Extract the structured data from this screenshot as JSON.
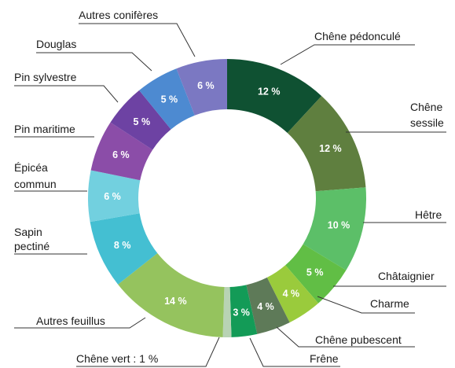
{
  "chart_data": {
    "type": "pie",
    "donut": true,
    "title": "",
    "slices": [
      {
        "label": "Chêne pédonculé",
        "value": 12,
        "value_label": "12 %",
        "color": "#0f5132"
      },
      {
        "label": "Chêne sessile",
        "value": 12,
        "value_label": "12 %",
        "color": "#5f7f3f"
      },
      {
        "label": "Hêtre",
        "value": 10,
        "value_label": "10 %",
        "color": "#5cbf68"
      },
      {
        "label": "Châtaignier",
        "value": 5,
        "value_label": "5 %",
        "color": "#61be45"
      },
      {
        "label": "Charme",
        "value": 4,
        "value_label": "4 %",
        "color": "#9acb3c"
      },
      {
        "label": "Chêne pubescent",
        "value": 4,
        "value_label": "4 %",
        "color": "#5e7a58"
      },
      {
        "label": "Frêne",
        "value": 3,
        "value_label": "3 %",
        "color": "#139b57"
      },
      {
        "label": "Chêne vert : 1 %",
        "value": 1,
        "value_label": "",
        "color": "#b8d3b4"
      },
      {
        "label": "Autres feuillus",
        "value": 14,
        "value_label": "14 %",
        "color": "#95c35e"
      },
      {
        "label": "Sapin pectiné",
        "value": 8,
        "value_label": "8 %",
        "color": "#44bfd2"
      },
      {
        "label": "Épicéa commun",
        "value": 6,
        "value_label": "6 %",
        "color": "#72d0df"
      },
      {
        "label": "Pin maritime",
        "value": 6,
        "value_label": "6 %",
        "color": "#8b4da8"
      },
      {
        "label": "Pin sylvestre",
        "value": 5,
        "value_label": "5 %",
        "color": "#6d42a3"
      },
      {
        "label": "Douglas",
        "value": 5,
        "value_label": "5 %",
        "color": "#4d8ad1"
      },
      {
        "label": "Autres conifères",
        "value": 6,
        "value_label": "6 %",
        "color": "#7b78c2"
      }
    ]
  }
}
